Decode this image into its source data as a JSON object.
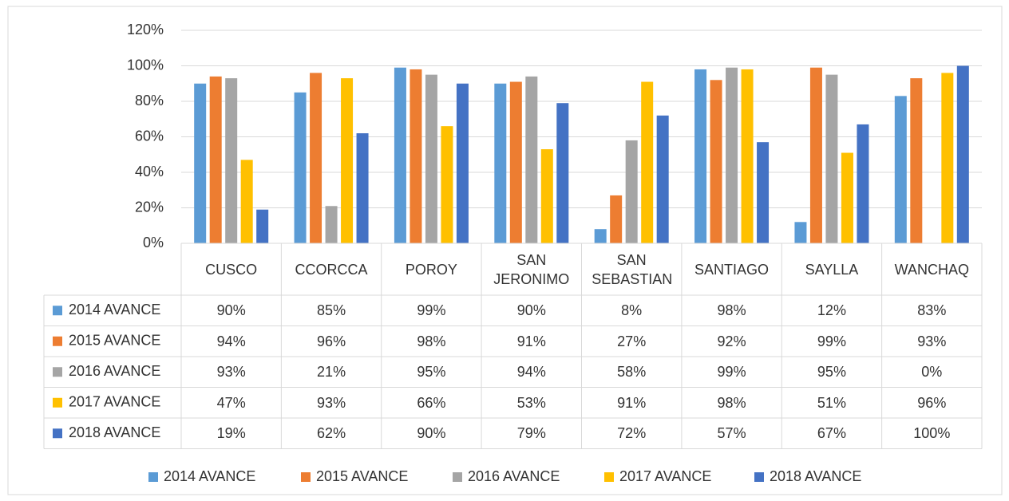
{
  "chart_data": {
    "type": "bar",
    "categories": [
      "CUSCO",
      "CCORCCA",
      "POROY",
      "SAN JERONIMO",
      "SAN SEBASTIAN",
      "SANTIAGO",
      "SAYLLA",
      "WANCHAQ"
    ],
    "series": [
      {
        "name": "2014 AVANCE",
        "color": "#5b9bd5",
        "values": [
          90,
          85,
          99,
          90,
          8,
          98,
          12,
          83
        ],
        "value_labels": [
          "90%",
          "85%",
          "99%",
          "90%",
          "8%",
          "98%",
          "12%",
          "83%"
        ]
      },
      {
        "name": "2015 AVANCE",
        "color": "#ed7d31",
        "values": [
          94,
          96,
          98,
          91,
          27,
          92,
          99,
          93
        ],
        "value_labels": [
          "94%",
          "96%",
          "98%",
          "91%",
          "27%",
          "92%",
          "99%",
          "93%"
        ]
      },
      {
        "name": "2016 AVANCE",
        "color": "#a5a5a5",
        "values": [
          93,
          21,
          95,
          94,
          58,
          99,
          95,
          0
        ],
        "value_labels": [
          "93%",
          "21%",
          "95%",
          "94%",
          "58%",
          "99%",
          "95%",
          "0%"
        ]
      },
      {
        "name": "2017 AVANCE",
        "color": "#ffc000",
        "values": [
          47,
          93,
          66,
          53,
          91,
          98,
          51,
          96
        ],
        "value_labels": [
          "47%",
          "93%",
          "66%",
          "53%",
          "91%",
          "98%",
          "51%",
          "96%"
        ]
      },
      {
        "name": "2018 AVANCE",
        "color": "#4472c4",
        "values": [
          19,
          62,
          90,
          79,
          72,
          57,
          67,
          100
        ],
        "value_labels": [
          "19%",
          "62%",
          "90%",
          "79%",
          "72%",
          "57%",
          "67%",
          "100%"
        ]
      }
    ],
    "ylim": [
      0,
      120
    ],
    "yticks": [
      {
        "value": 0,
        "label": "0%"
      },
      {
        "value": 20,
        "label": "20%"
      },
      {
        "value": 40,
        "label": "40%"
      },
      {
        "value": 60,
        "label": "60%"
      },
      {
        "value": 80,
        "label": "80%"
      },
      {
        "value": 100,
        "label": "100%"
      },
      {
        "value": 120,
        "label": "120%"
      }
    ],
    "grid": true,
    "legend": "bottom"
  }
}
